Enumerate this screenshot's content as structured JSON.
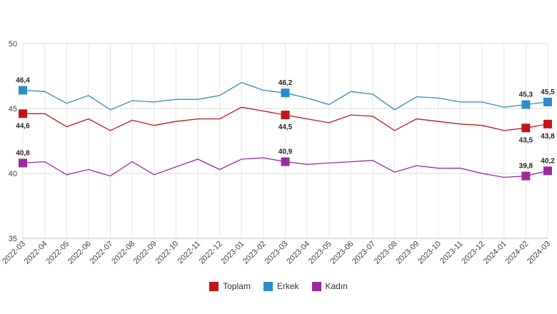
{
  "chart_data": {
    "type": "line",
    "categories": [
      "2022-03",
      "2022-04",
      "2022-05",
      "2022-06",
      "2022-07",
      "2022-08",
      "2022-09",
      "2022-10",
      "2022-11",
      "2022-12",
      "2023-01",
      "2023-02",
      "2023-03",
      "2023-04",
      "2023-05",
      "2023-06",
      "2023-07",
      "2023-08",
      "2023-09",
      "2023-10",
      "2023-11",
      "2023-12",
      "2024-01",
      "2024-02",
      "2024-03"
    ],
    "ylim": [
      35,
      50
    ],
    "yticks": [
      35,
      40,
      45,
      50
    ],
    "grid": true,
    "legend_position": "bottom",
    "series": [
      {
        "name": "Toplam",
        "color": "#c0161b",
        "values": [
          44.6,
          44.6,
          43.6,
          44.2,
          43.3,
          44.1,
          43.7,
          44.0,
          44.2,
          44.2,
          45.1,
          44.8,
          44.5,
          44.2,
          43.9,
          44.5,
          44.4,
          43.3,
          44.2,
          44.0,
          43.8,
          43.7,
          43.3,
          43.5,
          43.8
        ],
        "labels": [
          {
            "index": 0,
            "text": "44,6",
            "pos": "below"
          },
          {
            "index": 12,
            "text": "44,5",
            "pos": "below"
          },
          {
            "index": 23,
            "text": "43,5",
            "pos": "below"
          },
          {
            "index": 24,
            "text": "43,8",
            "pos": "below"
          }
        ]
      },
      {
        "name": "Erkek",
        "color": "#2f8ac9",
        "values": [
          46.4,
          46.3,
          45.4,
          46.0,
          44.9,
          45.6,
          45.5,
          45.7,
          45.7,
          46.0,
          47.0,
          46.4,
          46.2,
          45.8,
          45.3,
          46.3,
          46.1,
          44.9,
          45.9,
          45.8,
          45.5,
          45.5,
          45.1,
          45.3,
          45.5
        ],
        "labels": [
          {
            "index": 0,
            "text": "46,4",
            "pos": "above"
          },
          {
            "index": 12,
            "text": "46,2",
            "pos": "above"
          },
          {
            "index": 23,
            "text": "45,3",
            "pos": "above"
          },
          {
            "index": 24,
            "text": "45,5",
            "pos": "above"
          }
        ]
      },
      {
        "name": "Kadın",
        "color": "#9b2a9b",
        "values": [
          40.8,
          40.9,
          39.9,
          40.3,
          39.8,
          40.9,
          39.9,
          40.5,
          41.1,
          40.3,
          41.1,
          41.2,
          40.9,
          40.7,
          40.8,
          40.9,
          41.0,
          40.1,
          40.6,
          40.4,
          40.4,
          40.0,
          39.7,
          39.8,
          40.2
        ],
        "labels": [
          {
            "index": 0,
            "text": "40,8",
            "pos": "above"
          },
          {
            "index": 12,
            "text": "40,9",
            "pos": "above"
          },
          {
            "index": 23,
            "text": "39,8",
            "pos": "above"
          },
          {
            "index": 24,
            "text": "40,2",
            "pos": "above"
          }
        ]
      }
    ]
  }
}
